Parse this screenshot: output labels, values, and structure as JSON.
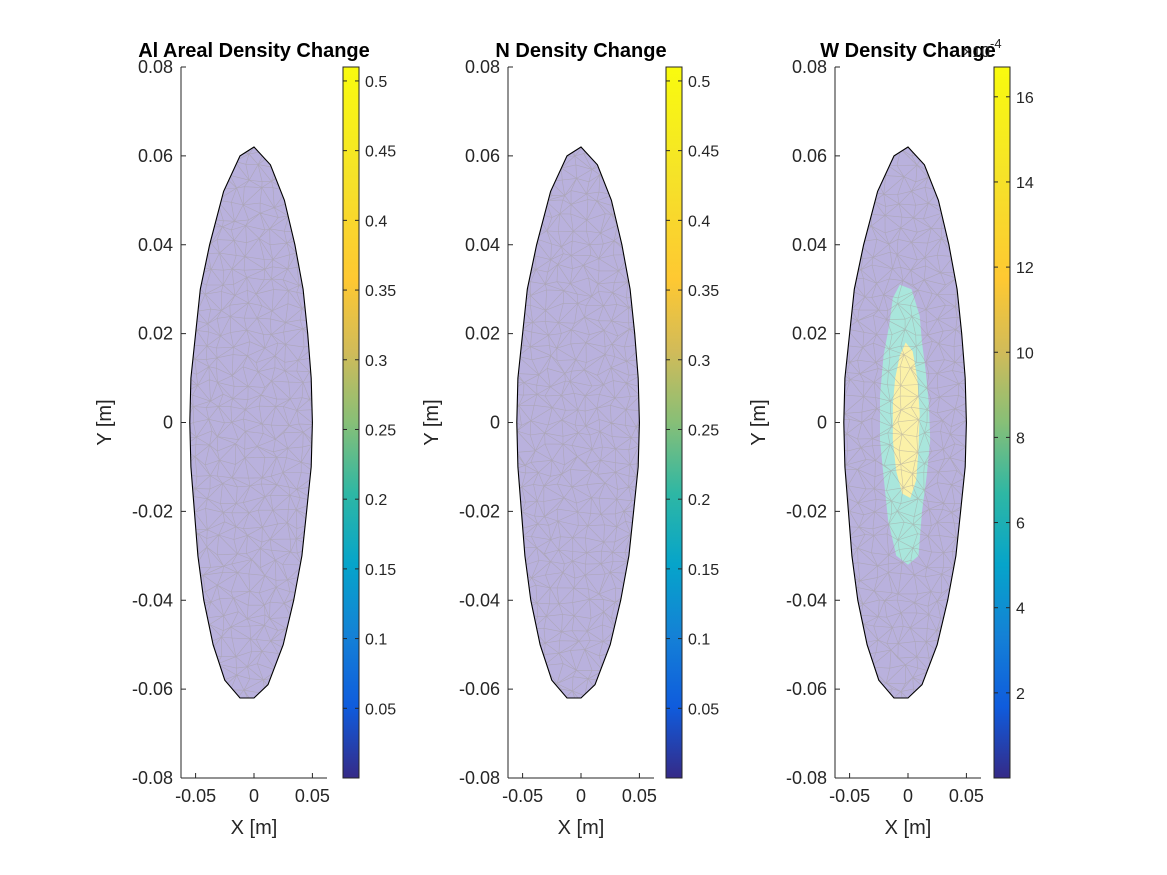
{
  "chart_data": [
    {
      "type": "heatmap",
      "title": "Al Areal Density Change",
      "xlabel": "X [m]",
      "ylabel": "Y [m]",
      "xlim": [
        -0.0625,
        0.0625
      ],
      "ylim": [
        -0.08,
        0.08
      ],
      "xticks": [
        "-0.05",
        "0",
        "0.05"
      ],
      "yticks": [
        "0.08",
        "0.06",
        "0.04",
        "0.02",
        "0",
        "-0.02",
        "-0.04",
        "-0.06",
        "-0.08"
      ],
      "colorbar": {
        "clim": [
          0,
          0.51
        ],
        "ticks": [
          "0.5",
          "0.45",
          "0.4",
          "0.35",
          "0.3",
          "0.25",
          "0.2",
          "0.15",
          "0.1",
          "0.05"
        ],
        "exponent": ""
      },
      "field": "uniform",
      "field_color": "#b9b1dd",
      "outline": [
        [
          0.0,
          0.062
        ],
        [
          -0.012,
          0.06
        ],
        [
          -0.026,
          0.052
        ],
        [
          -0.038,
          0.04
        ],
        [
          -0.046,
          0.03
        ],
        [
          -0.05,
          0.02
        ],
        [
          -0.054,
          0.01
        ],
        [
          -0.055,
          0.0
        ],
        [
          -0.054,
          -0.01
        ],
        [
          -0.051,
          -0.02
        ],
        [
          -0.048,
          -0.03
        ],
        [
          -0.043,
          -0.04
        ],
        [
          -0.035,
          -0.05
        ],
        [
          -0.025,
          -0.058
        ],
        [
          -0.012,
          -0.062
        ],
        [
          0.0,
          -0.062
        ],
        [
          0.012,
          -0.059
        ],
        [
          0.025,
          -0.05
        ],
        [
          0.034,
          -0.04
        ],
        [
          0.041,
          -0.03
        ],
        [
          0.045,
          -0.02
        ],
        [
          0.049,
          -0.01
        ],
        [
          0.05,
          0.0
        ],
        [
          0.049,
          0.01
        ],
        [
          0.046,
          0.02
        ],
        [
          0.042,
          0.03
        ],
        [
          0.035,
          0.04
        ],
        [
          0.026,
          0.05
        ],
        [
          0.014,
          0.058
        ]
      ]
    },
    {
      "type": "heatmap",
      "title": "N Density Change",
      "xlabel": "X [m]",
      "ylabel": "Y [m]",
      "xlim": [
        -0.0625,
        0.0625
      ],
      "ylim": [
        -0.08,
        0.08
      ],
      "xticks": [
        "-0.05",
        "0",
        "0.05"
      ],
      "yticks": [
        "0.08",
        "0.06",
        "0.04",
        "0.02",
        "0",
        "-0.02",
        "-0.04",
        "-0.06",
        "-0.08"
      ],
      "colorbar": {
        "clim": [
          0,
          0.51
        ],
        "ticks": [
          "0.5",
          "0.45",
          "0.4",
          "0.35",
          "0.3",
          "0.25",
          "0.2",
          "0.15",
          "0.1",
          "0.05"
        ],
        "exponent": ""
      },
      "field": "uniform",
      "field_color": "#b9b1dd",
      "outline": [
        [
          0.0,
          0.062
        ],
        [
          -0.012,
          0.06
        ],
        [
          -0.026,
          0.052
        ],
        [
          -0.038,
          0.04
        ],
        [
          -0.046,
          0.03
        ],
        [
          -0.05,
          0.02
        ],
        [
          -0.054,
          0.01
        ],
        [
          -0.055,
          0.0
        ],
        [
          -0.054,
          -0.01
        ],
        [
          -0.051,
          -0.02
        ],
        [
          -0.048,
          -0.03
        ],
        [
          -0.043,
          -0.04
        ],
        [
          -0.035,
          -0.05
        ],
        [
          -0.025,
          -0.058
        ],
        [
          -0.012,
          -0.062
        ],
        [
          0.0,
          -0.062
        ],
        [
          0.012,
          -0.059
        ],
        [
          0.025,
          -0.05
        ],
        [
          0.034,
          -0.04
        ],
        [
          0.041,
          -0.03
        ],
        [
          0.045,
          -0.02
        ],
        [
          0.049,
          -0.01
        ],
        [
          0.05,
          0.0
        ],
        [
          0.049,
          0.01
        ],
        [
          0.046,
          0.02
        ],
        [
          0.042,
          0.03
        ],
        [
          0.035,
          0.04
        ],
        [
          0.026,
          0.05
        ],
        [
          0.014,
          0.058
        ]
      ]
    },
    {
      "type": "heatmap",
      "title": "W Density Change",
      "xlabel": "X [m]",
      "ylabel": "Y [m]",
      "xlim": [
        -0.0625,
        0.0625
      ],
      "ylim": [
        -0.08,
        0.08
      ],
      "xticks": [
        "-0.05",
        "0",
        "0.05"
      ],
      "yticks": [
        "0.08",
        "0.06",
        "0.04",
        "0.02",
        "0",
        "-0.02",
        "-0.04",
        "-0.06",
        "-0.08"
      ],
      "colorbar": {
        "clim": [
          0,
          0.00167
        ],
        "ticks": [
          "16",
          "14",
          "12",
          "10",
          "8",
          "6",
          "4",
          "2"
        ],
        "exponent": "×10",
        "exponent_power": "-4"
      },
      "field": "hotspot",
      "field_color": "#b9b1dd",
      "hotspot_mid": {
        "color": "#a9e6dc",
        "polygon": [
          [
            -0.007,
            0.031
          ],
          [
            0.003,
            0.03
          ],
          [
            0.01,
            0.024
          ],
          [
            0.012,
            0.018
          ],
          [
            0.015,
            0.012
          ],
          [
            0.018,
            0.004
          ],
          [
            0.019,
            -0.004
          ],
          [
            0.016,
            -0.012
          ],
          [
            0.012,
            -0.02
          ],
          [
            0.009,
            -0.03
          ],
          [
            0.0,
            -0.032
          ],
          [
            -0.01,
            -0.03
          ],
          [
            -0.017,
            -0.022
          ],
          [
            -0.021,
            -0.012
          ],
          [
            -0.024,
            -0.004
          ],
          [
            -0.024,
            0.006
          ],
          [
            -0.021,
            0.015
          ],
          [
            -0.016,
            0.022
          ],
          [
            -0.013,
            0.028
          ]
        ]
      },
      "hotspot_core": {
        "color": "#fbf1a8",
        "polygon": [
          [
            -0.002,
            0.018
          ],
          [
            0.004,
            0.016
          ],
          [
            0.008,
            0.01
          ],
          [
            0.01,
            0.002
          ],
          [
            0.009,
            -0.006
          ],
          [
            0.007,
            -0.013
          ],
          [
            0.002,
            -0.017
          ],
          [
            -0.005,
            -0.016
          ],
          [
            -0.01,
            -0.011
          ],
          [
            -0.013,
            -0.004
          ],
          [
            -0.013,
            0.004
          ],
          [
            -0.011,
            0.01
          ],
          [
            -0.007,
            0.015
          ]
        ]
      },
      "outline": [
        [
          0.0,
          0.062
        ],
        [
          -0.012,
          0.06
        ],
        [
          -0.026,
          0.052
        ],
        [
          -0.038,
          0.04
        ],
        [
          -0.046,
          0.03
        ],
        [
          -0.05,
          0.02
        ],
        [
          -0.054,
          0.01
        ],
        [
          -0.055,
          0.0
        ],
        [
          -0.054,
          -0.01
        ],
        [
          -0.051,
          -0.02
        ],
        [
          -0.048,
          -0.03
        ],
        [
          -0.043,
          -0.04
        ],
        [
          -0.035,
          -0.05
        ],
        [
          -0.025,
          -0.058
        ],
        [
          -0.012,
          -0.062
        ],
        [
          0.0,
          -0.062
        ],
        [
          0.012,
          -0.059
        ],
        [
          0.025,
          -0.05
        ],
        [
          0.034,
          -0.04
        ],
        [
          0.041,
          -0.03
        ],
        [
          0.045,
          -0.02
        ],
        [
          0.049,
          -0.01
        ],
        [
          0.05,
          0.0
        ],
        [
          0.049,
          0.01
        ],
        [
          0.046,
          0.02
        ],
        [
          0.042,
          0.03
        ],
        [
          0.035,
          0.04
        ],
        [
          0.026,
          0.05
        ],
        [
          0.014,
          0.058
        ]
      ]
    }
  ]
}
